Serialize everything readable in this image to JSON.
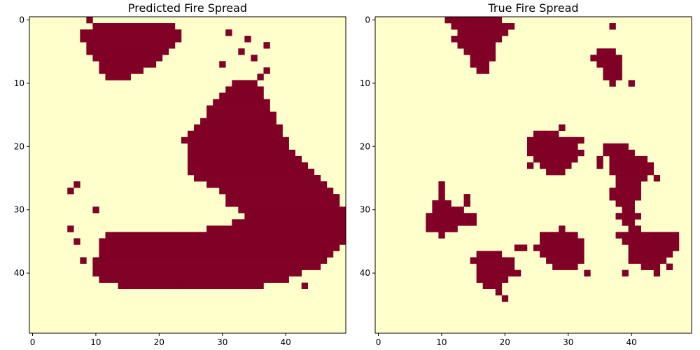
{
  "chart_data": [
    {
      "type": "heatmap",
      "title": "Predicted Fire Spread",
      "xlabel": "",
      "ylabel": "",
      "grid_size": [
        50,
        50
      ],
      "xlim": [
        -0.5,
        49.5
      ],
      "ylim": [
        49.5,
        -0.5
      ],
      "x_ticks": [
        0,
        10,
        20,
        30,
        40
      ],
      "y_ticks": [
        0,
        10,
        20,
        30,
        40
      ],
      "colors": {
        "burned": "#800026",
        "unburned": "#ffffcc"
      },
      "runs": [
        [
          0,
          9,
          9
        ],
        [
          1,
          10,
          22
        ],
        [
          2,
          8,
          23
        ],
        [
          3,
          8,
          23
        ],
        [
          4,
          9,
          22
        ],
        [
          5,
          9,
          21
        ],
        [
          6,
          10,
          20
        ],
        [
          7,
          11,
          19
        ],
        [
          8,
          11,
          17
        ],
        [
          9,
          12,
          15
        ],
        [
          10,
          32,
          35
        ],
        [
          11,
          31,
          36
        ],
        [
          12,
          30,
          36
        ],
        [
          13,
          29,
          37
        ],
        [
          14,
          28,
          37
        ],
        [
          15,
          28,
          38
        ],
        [
          16,
          27,
          38
        ],
        [
          17,
          26,
          39
        ],
        [
          18,
          25,
          39
        ],
        [
          19,
          24,
          40
        ],
        [
          20,
          25,
          40
        ],
        [
          21,
          25,
          41
        ],
        [
          22,
          25,
          42
        ],
        [
          23,
          25,
          43
        ],
        [
          24,
          25,
          44
        ],
        [
          25,
          26,
          45
        ],
        [
          26,
          28,
          46
        ],
        [
          27,
          30,
          47
        ],
        [
          28,
          31,
          48
        ],
        [
          29,
          31,
          48
        ],
        [
          30,
          33,
          49
        ],
        [
          31,
          34,
          49
        ],
        [
          32,
          32,
          49
        ],
        [
          33,
          28,
          49
        ],
        [
          34,
          12,
          49
        ],
        [
          35,
          11,
          49
        ],
        [
          36,
          11,
          48
        ],
        [
          37,
          11,
          47
        ],
        [
          38,
          10,
          46
        ],
        [
          39,
          10,
          45
        ],
        [
          40,
          10,
          42
        ],
        [
          41,
          11,
          40
        ],
        [
          42,
          14,
          36
        ]
      ],
      "specks": [
        [
          2,
          31
        ],
        [
          3,
          34
        ],
        [
          4,
          37
        ],
        [
          5,
          33
        ],
        [
          6,
          35
        ],
        [
          7,
          30
        ],
        [
          8,
          37
        ],
        [
          9,
          36
        ],
        [
          15,
          37
        ],
        [
          17,
          37
        ],
        [
          26,
          7
        ],
        [
          27,
          6
        ],
        [
          30,
          10
        ],
        [
          33,
          6
        ],
        [
          35,
          7
        ],
        [
          38,
          8
        ],
        [
          42,
          43
        ],
        [
          42,
          23
        ]
      ]
    },
    {
      "type": "heatmap",
      "title": "True Fire Spread",
      "xlabel": "",
      "ylabel": "",
      "grid_size": [
        50,
        50
      ],
      "xlim": [
        -0.5,
        49.5
      ],
      "ylim": [
        49.5,
        -0.5
      ],
      "x_ticks": [
        0,
        10,
        20,
        30,
        40
      ],
      "y_ticks": [
        0,
        10,
        20,
        30,
        40
      ],
      "colors": {
        "burned": "#800026",
        "unburned": "#ffffcc"
      },
      "runs": [
        [
          0,
          11,
          19
        ],
        [
          1,
          12,
          21
        ],
        [
          2,
          13,
          20
        ],
        [
          3,
          12,
          19
        ],
        [
          4,
          13,
          18
        ],
        [
          5,
          14,
          18
        ],
        [
          6,
          15,
          18
        ],
        [
          7,
          15,
          17
        ],
        [
          8,
          16,
          17
        ],
        [
          5,
          35,
          37
        ],
        [
          6,
          34,
          38
        ],
        [
          7,
          35,
          38
        ],
        [
          8,
          36,
          38
        ],
        [
          9,
          36,
          38
        ],
        [
          10,
          37,
          37
        ],
        [
          18,
          25,
          28
        ],
        [
          19,
          24,
          32
        ],
        [
          20,
          24,
          31
        ],
        [
          21,
          24,
          32
        ],
        [
          22,
          25,
          31
        ],
        [
          23,
          26,
          30
        ],
        [
          24,
          27,
          29
        ],
        [
          20,
          36,
          39
        ],
        [
          21,
          36,
          40
        ],
        [
          22,
          37,
          42
        ],
        [
          23,
          37,
          43
        ],
        [
          24,
          37,
          43
        ],
        [
          25,
          38,
          42
        ],
        [
          26,
          38,
          41
        ],
        [
          27,
          37,
          41
        ],
        [
          28,
          37,
          41
        ],
        [
          29,
          38,
          40
        ],
        [
          30,
          39,
          40
        ],
        [
          31,
          38,
          40
        ],
        [
          32,
          39,
          40
        ],
        [
          33,
          40,
          41
        ],
        [
          34,
          38,
          47
        ],
        [
          35,
          39,
          47
        ],
        [
          36,
          40,
          47
        ],
        [
          37,
          40,
          46
        ],
        [
          38,
          40,
          45
        ],
        [
          39,
          42,
          44
        ],
        [
          29,
          9,
          11
        ],
        [
          30,
          9,
          13
        ],
        [
          31,
          8,
          14
        ],
        [
          32,
          8,
          15
        ],
        [
          33,
          9,
          12
        ],
        [
          34,
          26,
          31
        ],
        [
          35,
          26,
          32
        ],
        [
          36,
          25,
          32
        ],
        [
          37,
          26,
          32
        ],
        [
          38,
          27,
          32
        ],
        [
          39,
          28,
          31
        ],
        [
          37,
          16,
          19
        ],
        [
          38,
          15,
          21
        ],
        [
          39,
          16,
          21
        ],
        [
          40,
          16,
          22
        ],
        [
          41,
          16,
          20
        ],
        [
          42,
          17,
          19
        ]
      ],
      "specks": [
        [
          1,
          37
        ],
        [
          10,
          40
        ],
        [
          17,
          29
        ],
        [
          23,
          24
        ],
        [
          22,
          35
        ],
        [
          23,
          35
        ],
        [
          26,
          10
        ],
        [
          27,
          10
        ],
        [
          28,
          10
        ],
        [
          28,
          14
        ],
        [
          29,
          14
        ],
        [
          31,
          15
        ],
        [
          33,
          8
        ],
        [
          34,
          10
        ],
        [
          33,
          29
        ],
        [
          40,
          33
        ],
        [
          43,
          19
        ],
        [
          44,
          20
        ],
        [
          36,
          22
        ],
        [
          36,
          23
        ],
        [
          25,
          44
        ],
        [
          31,
          41
        ],
        [
          39,
          46
        ],
        [
          40,
          39
        ],
        [
          40,
          44
        ]
      ]
    }
  ]
}
